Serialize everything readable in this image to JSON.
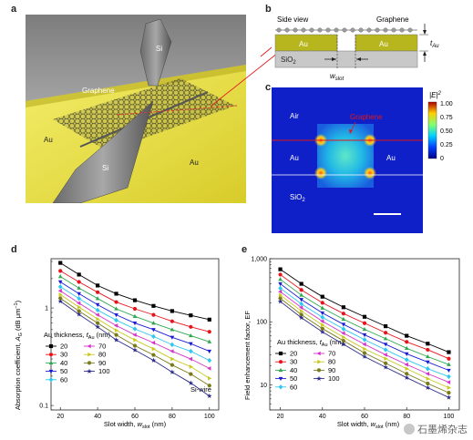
{
  "panel_a": {
    "letter": "a",
    "labels": {
      "si_top": "Si",
      "si_bottom": "Si",
      "graphene": "Graphene",
      "au_left": "Au",
      "au_right": "Au"
    }
  },
  "panel_b": {
    "letter": "b",
    "side_view": "Side view",
    "graphene": "Graphene",
    "au_left": "Au",
    "au_right": "Au",
    "sio2": "SiO",
    "sio2_sub": "2",
    "w_main": "w",
    "w_sub": "slot",
    "t_main": "t",
    "t_sub": "Au"
  },
  "panel_c": {
    "letter": "c",
    "air": "Air",
    "graphene": "Graphene",
    "au_left": "Au",
    "au_right": "Au",
    "sio2": "SiO",
    "sio2_sub": "2",
    "cbar_title": "|E|",
    "cbar_sup": "2",
    "cbar_ticks": [
      "1.00",
      "0.75",
      "0.50",
      "0.25",
      "0"
    ]
  },
  "panel_d": {
    "letter": "d",
    "legend_title": "Au thickness, ",
    "legend_t": "t",
    "legend_tsub": "Au",
    "legend_unit": " (nm)",
    "note": "Si-wire",
    "xlabel_main": "Slot width, ",
    "xlabel_w": "w",
    "xlabel_sub": "slot",
    "xlabel_unit": " (nm)",
    "ylabel_main": "Absorption coefficient, ",
    "ylabel_A": "A",
    "ylabel_sub": "G",
    "ylabel_unit": " (dB μm",
    "ylabel_sup": "−1",
    "ylabel_end": ")"
  },
  "panel_e": {
    "letter": "e",
    "legend_title": "Au thickness, ",
    "legend_t": "t",
    "legend_tsub": "Au",
    "legend_unit": " (nm)",
    "xlabel_main": "Slot width, ",
    "xlabel_w": "w",
    "xlabel_sub": "slot",
    "xlabel_unit": " (nm)",
    "ylabel": "Field enhancement factor, EF"
  },
  "watermark": "石墨烯杂志",
  "series_style": [
    {
      "name": "20",
      "color": "#000000",
      "marker": "square"
    },
    {
      "name": "30",
      "color": "#e8141b",
      "marker": "circle"
    },
    {
      "name": "40",
      "color": "#2fa84f",
      "marker": "triangle-up"
    },
    {
      "name": "50",
      "color": "#1b1bd6",
      "marker": "triangle-down"
    },
    {
      "name": "60",
      "color": "#2ec7f0",
      "marker": "diamond"
    },
    {
      "name": "70",
      "color": "#d633c8",
      "marker": "triangle-left"
    },
    {
      "name": "80",
      "color": "#c8c81e",
      "marker": "triangle-right"
    },
    {
      "name": "90",
      "color": "#7a7a1a",
      "marker": "hexagon"
    },
    {
      "name": "100",
      "color": "#2a2a8a",
      "marker": "star"
    }
  ],
  "chart_data": [
    {
      "type": "line",
      "panel": "d",
      "yscale": "log",
      "xlim": [
        15,
        105
      ],
      "ylim": [
        0.09,
        3.2
      ],
      "xticks": [
        20,
        40,
        60,
        80,
        100
      ],
      "yticks": [
        {
          "v": 0.1,
          "label": "0.1"
        },
        {
          "v": 1,
          "label": "1"
        }
      ],
      "x": [
        20,
        30,
        40,
        50,
        60,
        70,
        80,
        90,
        100
      ],
      "series": [
        {
          "name": "20",
          "values": [
            2.9,
            2.2,
            1.7,
            1.4,
            1.2,
            1.05,
            0.93,
            0.84,
            0.76
          ]
        },
        {
          "name": "30",
          "values": [
            2.4,
            1.85,
            1.45,
            1.15,
            0.98,
            0.85,
            0.73,
            0.64,
            0.57
          ]
        },
        {
          "name": "40",
          "values": [
            2.1,
            1.6,
            1.25,
            0.98,
            0.82,
            0.7,
            0.6,
            0.52,
            0.45
          ]
        },
        {
          "name": "50",
          "values": [
            1.85,
            1.4,
            1.08,
            0.85,
            0.7,
            0.6,
            0.5,
            0.43,
            0.36
          ]
        },
        {
          "name": "60",
          "values": [
            1.65,
            1.25,
            0.95,
            0.75,
            0.61,
            0.51,
            0.42,
            0.36,
            0.29
          ]
        },
        {
          "name": "70",
          "values": [
            1.5,
            1.12,
            0.85,
            0.66,
            0.53,
            0.44,
            0.36,
            0.3,
            0.24
          ]
        },
        {
          "name": "80",
          "values": [
            1.37,
            1.02,
            0.77,
            0.59,
            0.47,
            0.38,
            0.3,
            0.25,
            0.19
          ]
        },
        {
          "name": "90",
          "values": [
            1.26,
            0.93,
            0.7,
            0.53,
            0.41,
            0.33,
            0.26,
            0.21,
            0.16
          ]
        },
        {
          "name": "100",
          "values": [
            1.17,
            0.86,
            0.64,
            0.47,
            0.37,
            0.29,
            0.22,
            0.17,
            0.125
          ]
        }
      ]
    },
    {
      "type": "line",
      "panel": "e",
      "yscale": "log",
      "xlim": [
        15,
        105
      ],
      "ylim": [
        4,
        1000
      ],
      "xticks": [
        20,
        40,
        60,
        80,
        100
      ],
      "yticks": [
        {
          "v": 10,
          "label": "10"
        },
        {
          "v": 100,
          "label": "100"
        },
        {
          "v": 1000,
          "label": "1,000"
        }
      ],
      "x": [
        20,
        30,
        40,
        50,
        60,
        70,
        80,
        90,
        100
      ],
      "series": [
        {
          "name": "20",
          "values": [
            680,
            400,
            250,
            170,
            120,
            85,
            60,
            45,
            33
          ]
        },
        {
          "name": "30",
          "values": [
            560,
            320,
            200,
            135,
            95,
            67,
            48,
            36,
            26
          ]
        },
        {
          "name": "40",
          "values": [
            470,
            265,
            165,
            110,
            76,
            54,
            38,
            28,
            21
          ]
        },
        {
          "name": "50",
          "values": [
            400,
            225,
            138,
            91,
            62,
            44,
            31,
            23,
            17
          ]
        },
        {
          "name": "60",
          "values": [
            340,
            192,
            118,
            77,
            52,
            36,
            25,
            18,
            13.5
          ]
        },
        {
          "name": "70",
          "values": [
            300,
            168,
            102,
            66,
            44,
            30,
            21,
            15,
            11
          ]
        },
        {
          "name": "80",
          "values": [
            265,
            148,
            89,
            57,
            37,
            26,
            18,
            12.5,
            9
          ]
        },
        {
          "name": "90",
          "values": [
            235,
            130,
            78,
            50,
            32,
            22,
            15,
            10.5,
            7.5
          ]
        },
        {
          "name": "100",
          "values": [
            210,
            116,
            69,
            44,
            28,
            19,
            13,
            9,
            6.3
          ]
        }
      ]
    }
  ]
}
